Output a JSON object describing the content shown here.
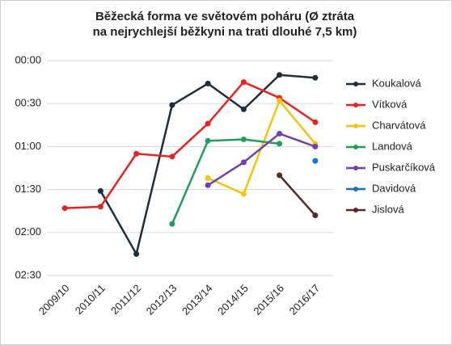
{
  "chart_data": {
    "type": "line",
    "title": [
      "Běžecká forma ve světovém poháru (Ø ztráta",
      "na nejrychlejší běžkyni na trati dlouhé 7,5 km)"
    ],
    "categories": [
      "2009/10",
      "2010/11",
      "2011/12",
      "2012/13",
      "2013/14",
      "2014/15",
      "2015/16",
      "2016/17"
    ],
    "ylim": [
      0,
      150
    ],
    "y_inverted": true,
    "yticks": [
      {
        "value": 0,
        "label": "00:00"
      },
      {
        "value": 30,
        "label": "00:30"
      },
      {
        "value": 60,
        "label": "01:00"
      },
      {
        "value": 90,
        "label": "01:30"
      },
      {
        "value": 120,
        "label": "02:00"
      },
      {
        "value": 150,
        "label": "02:30"
      }
    ],
    "grid": true,
    "legend": "right",
    "series": [
      {
        "name": "Koukalová",
        "color": "#1f2d3d",
        "values": [
          null,
          91,
          135,
          31,
          16,
          34,
          10,
          12
        ]
      },
      {
        "name": "Vítková",
        "color": "#e8231f",
        "values": [
          103,
          102,
          65,
          67,
          44,
          15,
          26,
          43
        ]
      },
      {
        "name": "Charvátová",
        "color": "#f5c40f",
        "values": [
          null,
          null,
          null,
          null,
          82,
          93,
          28,
          58
        ]
      },
      {
        "name": "Landová",
        "color": "#1f9e5a",
        "values": [
          null,
          null,
          null,
          114,
          56,
          55,
          58,
          null
        ]
      },
      {
        "name": "Puskarčíková",
        "color": "#7040b0",
        "values": [
          null,
          null,
          null,
          null,
          87,
          71,
          51,
          60
        ]
      },
      {
        "name": "Davidová",
        "color": "#1a72c0",
        "values": [
          null,
          null,
          null,
          null,
          null,
          null,
          null,
          70
        ]
      },
      {
        "name": "Jislová",
        "color": "#5a2a22",
        "values": [
          null,
          null,
          null,
          null,
          null,
          null,
          80,
          108
        ]
      }
    ]
  }
}
